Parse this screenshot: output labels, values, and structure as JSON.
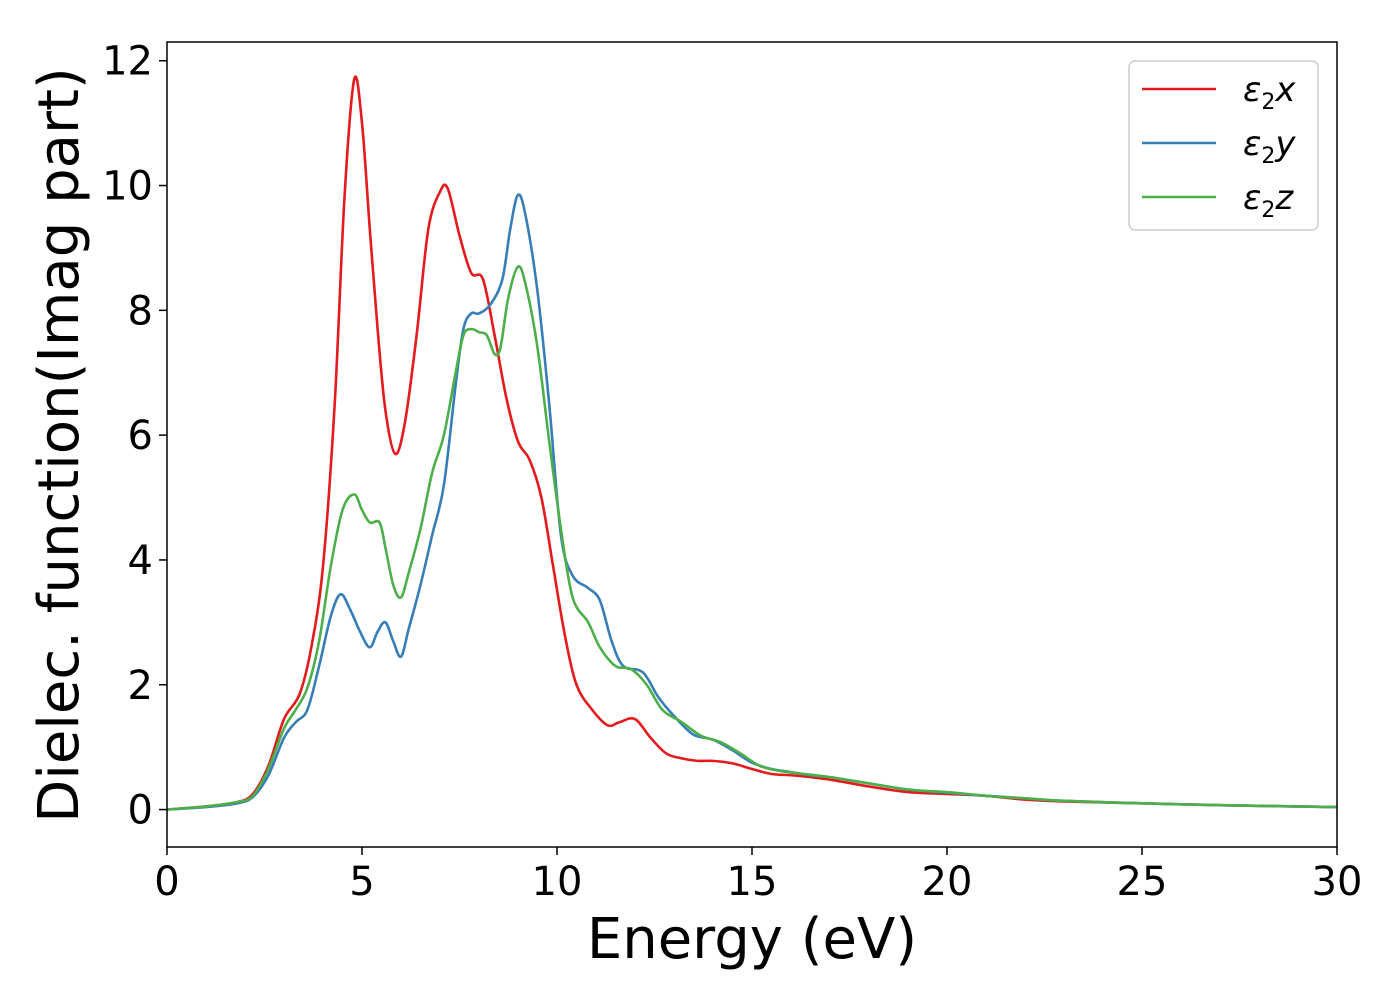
{
  "chart_data": {
    "type": "line",
    "xlabel": "Energy (eV)",
    "ylabel": "Dielec. function(Imag part)",
    "xlim": [
      0,
      30
    ],
    "ylim": [
      -0.6,
      12.3
    ],
    "xticks": [
      "0",
      "5",
      "10",
      "15",
      "20",
      "25",
      "30"
    ],
    "yticks": [
      "0",
      "2",
      "4",
      "6",
      "8",
      "10",
      "12"
    ],
    "grid": false,
    "legend_position": "top-right",
    "series": [
      {
        "name": "ε2x",
        "legend": {
          "symbol": "ε",
          "sub": "2",
          "var": "x"
        },
        "color": "#e41a1c",
        "x": [
          0,
          1,
          1.8,
          2.2,
          2.6,
          3.0,
          3.4,
          3.7,
          4.0,
          4.3,
          4.55,
          4.8,
          5.0,
          5.2,
          5.4,
          5.6,
          5.85,
          6.1,
          6.4,
          6.7,
          7.0,
          7.2,
          7.5,
          7.8,
          8.1,
          8.4,
          8.7,
          9.0,
          9.3,
          9.6,
          9.9,
          10.2,
          10.5,
          10.9,
          11.3,
          11.6,
          12.0,
          12.4,
          12.8,
          13.2,
          13.6,
          14.0,
          14.5,
          15.0,
          15.5,
          16.0,
          16.5,
          17.0,
          18.0,
          19.0,
          20.0,
          21.0,
          22.0,
          23.0,
          25.0,
          27.0,
          30.0
        ],
        "y": [
          0.0,
          0.05,
          0.12,
          0.25,
          0.7,
          1.45,
          1.85,
          2.6,
          3.9,
          6.5,
          9.8,
          11.7,
          11.0,
          9.3,
          7.7,
          6.4,
          5.7,
          6.2,
          7.6,
          9.3,
          9.9,
          9.95,
          9.2,
          8.6,
          8.5,
          7.6,
          6.6,
          5.9,
          5.6,
          5.0,
          3.9,
          2.8,
          2.0,
          1.6,
          1.35,
          1.4,
          1.45,
          1.15,
          0.9,
          0.82,
          0.78,
          0.78,
          0.74,
          0.65,
          0.57,
          0.55,
          0.52,
          0.48,
          0.37,
          0.28,
          0.25,
          0.22,
          0.16,
          0.13,
          0.1,
          0.07,
          0.04
        ]
      },
      {
        "name": "ε2y",
        "legend": {
          "symbol": "ε",
          "sub": "2",
          "var": "y"
        },
        "color": "#377eb8",
        "x": [
          0,
          1,
          1.8,
          2.2,
          2.6,
          3.0,
          3.3,
          3.6,
          3.9,
          4.2,
          4.45,
          4.7,
          4.95,
          5.2,
          5.4,
          5.6,
          5.8,
          6.0,
          6.2,
          6.5,
          6.8,
          7.1,
          7.4,
          7.6,
          7.8,
          8.0,
          8.3,
          8.6,
          8.8,
          9.0,
          9.2,
          9.5,
          9.8,
          10.1,
          10.4,
          10.8,
          11.1,
          11.4,
          11.7,
          12.2,
          12.6,
          13.0,
          13.5,
          14.0,
          14.5,
          15.0,
          15.5,
          16.0,
          16.5,
          17.0,
          18.0,
          19.0,
          20.0,
          21.0,
          22.0,
          23.0,
          25.0,
          27.0,
          30.0
        ],
        "y": [
          0.0,
          0.04,
          0.1,
          0.2,
          0.55,
          1.15,
          1.4,
          1.6,
          2.3,
          3.1,
          3.45,
          3.2,
          2.85,
          2.6,
          2.85,
          3.0,
          2.7,
          2.45,
          2.9,
          3.6,
          4.4,
          5.2,
          6.8,
          7.7,
          7.95,
          7.95,
          8.1,
          8.5,
          9.3,
          9.85,
          9.5,
          8.3,
          6.5,
          4.4,
          3.75,
          3.55,
          3.35,
          2.7,
          2.3,
          2.2,
          1.8,
          1.5,
          1.2,
          1.12,
          0.95,
          0.75,
          0.65,
          0.6,
          0.55,
          0.52,
          0.42,
          0.32,
          0.27,
          0.22,
          0.18,
          0.14,
          0.1,
          0.07,
          0.04
        ]
      },
      {
        "name": "ε2z",
        "legend": {
          "symbol": "ε",
          "sub": "2",
          "var": "z"
        },
        "color": "#4daf4a",
        "x": [
          0,
          1,
          1.8,
          2.2,
          2.6,
          3.0,
          3.3,
          3.6,
          3.9,
          4.2,
          4.5,
          4.8,
          5.0,
          5.2,
          5.45,
          5.6,
          5.8,
          6.0,
          6.2,
          6.5,
          6.8,
          7.1,
          7.4,
          7.6,
          7.8,
          8.0,
          8.2,
          8.4,
          8.55,
          8.75,
          9.0,
          9.2,
          9.5,
          9.8,
          10.1,
          10.4,
          10.8,
          11.1,
          11.5,
          11.9,
          12.3,
          12.7,
          13.2,
          13.7,
          14.2,
          14.7,
          15.2,
          15.7,
          16.2,
          17.0,
          18.0,
          19.0,
          20.0,
          21.0,
          22.0,
          23.0,
          25.0,
          27.0,
          30.0
        ],
        "y": [
          0.0,
          0.05,
          0.12,
          0.22,
          0.65,
          1.3,
          1.6,
          1.95,
          2.7,
          3.9,
          4.8,
          5.05,
          4.8,
          4.6,
          4.6,
          4.2,
          3.6,
          3.4,
          3.8,
          4.5,
          5.4,
          6.0,
          7.0,
          7.6,
          7.7,
          7.65,
          7.6,
          7.3,
          7.4,
          8.2,
          8.7,
          8.4,
          7.4,
          5.9,
          4.5,
          3.4,
          3.0,
          2.6,
          2.3,
          2.25,
          2.0,
          1.6,
          1.4,
          1.18,
          1.08,
          0.9,
          0.7,
          0.62,
          0.58,
          0.52,
          0.42,
          0.32,
          0.28,
          0.22,
          0.18,
          0.14,
          0.1,
          0.07,
          0.04
        ]
      }
    ]
  }
}
